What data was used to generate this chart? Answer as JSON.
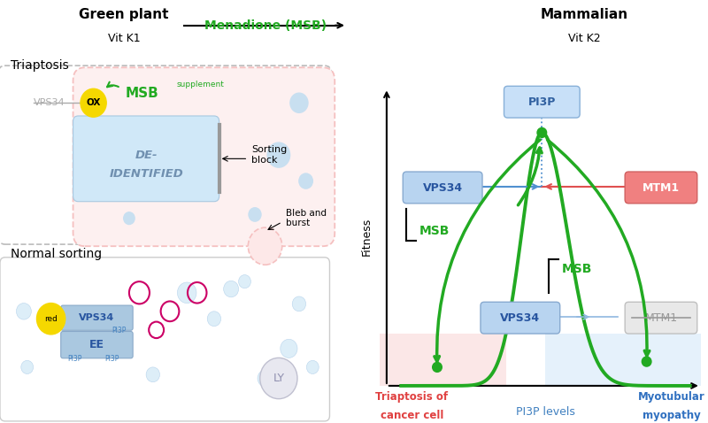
{
  "title_left": "Green plant",
  "subtitle_left": "Vit K1",
  "title_middle": "Menadione (MSB)",
  "title_right": "Mammalian",
  "subtitle_right": "Vit K2",
  "triaptosis_label": "Triaptosis",
  "normal_sorting_label": "Normal sorting",
  "vps34_strikethrough": "VPS34",
  "ox_label": "OX",
  "msb_supplement_main": "MSB",
  "msb_superscript": "supplement",
  "de_identified_line1": "DE-",
  "de_identified_line2": "IDENTIFIED",
  "sorting_block": "Sorting\nblock",
  "bleb_burst": "Bleb and\nburst",
  "red_label": "red",
  "ee_label": "EE",
  "ly_label": "LY",
  "pi3p_label": "PI3P",
  "fitness_label": "Fitness",
  "pi3p_levels_label": "PI3P levels",
  "triaptosis_cancer_line1": "Triaptosis of",
  "triaptosis_cancer_line2": "cancer cell",
  "myotubular_line1": "Myotubular",
  "myotubular_line2": "myopathy",
  "msb_upper": "MSB",
  "msb_lower": "MSB",
  "vps34_box_upper": "VPS34",
  "vps34_box_lower": "VPS34",
  "mtm1_upper": "MTM1",
  "mtm1_lower": "MTM1",
  "pi3p_box": "PI3P",
  "color_green": "#22aa22",
  "color_blue_box": "#a8c8e8",
  "color_pink_box": "#f08080",
  "color_gray_box": "#d8d8d8",
  "color_red_text": "#e04040",
  "color_blue_text": "#3070c0",
  "color_pink_bg": "#f8d0d0",
  "color_blue_bg": "#cce4f8",
  "color_dashed_border": "#cccccc",
  "color_pink_cell": "#f5c0c0",
  "color_blue_bubble": "#c8dff0",
  "color_magenta": "#cc0066",
  "bg_color": "#ffffff"
}
